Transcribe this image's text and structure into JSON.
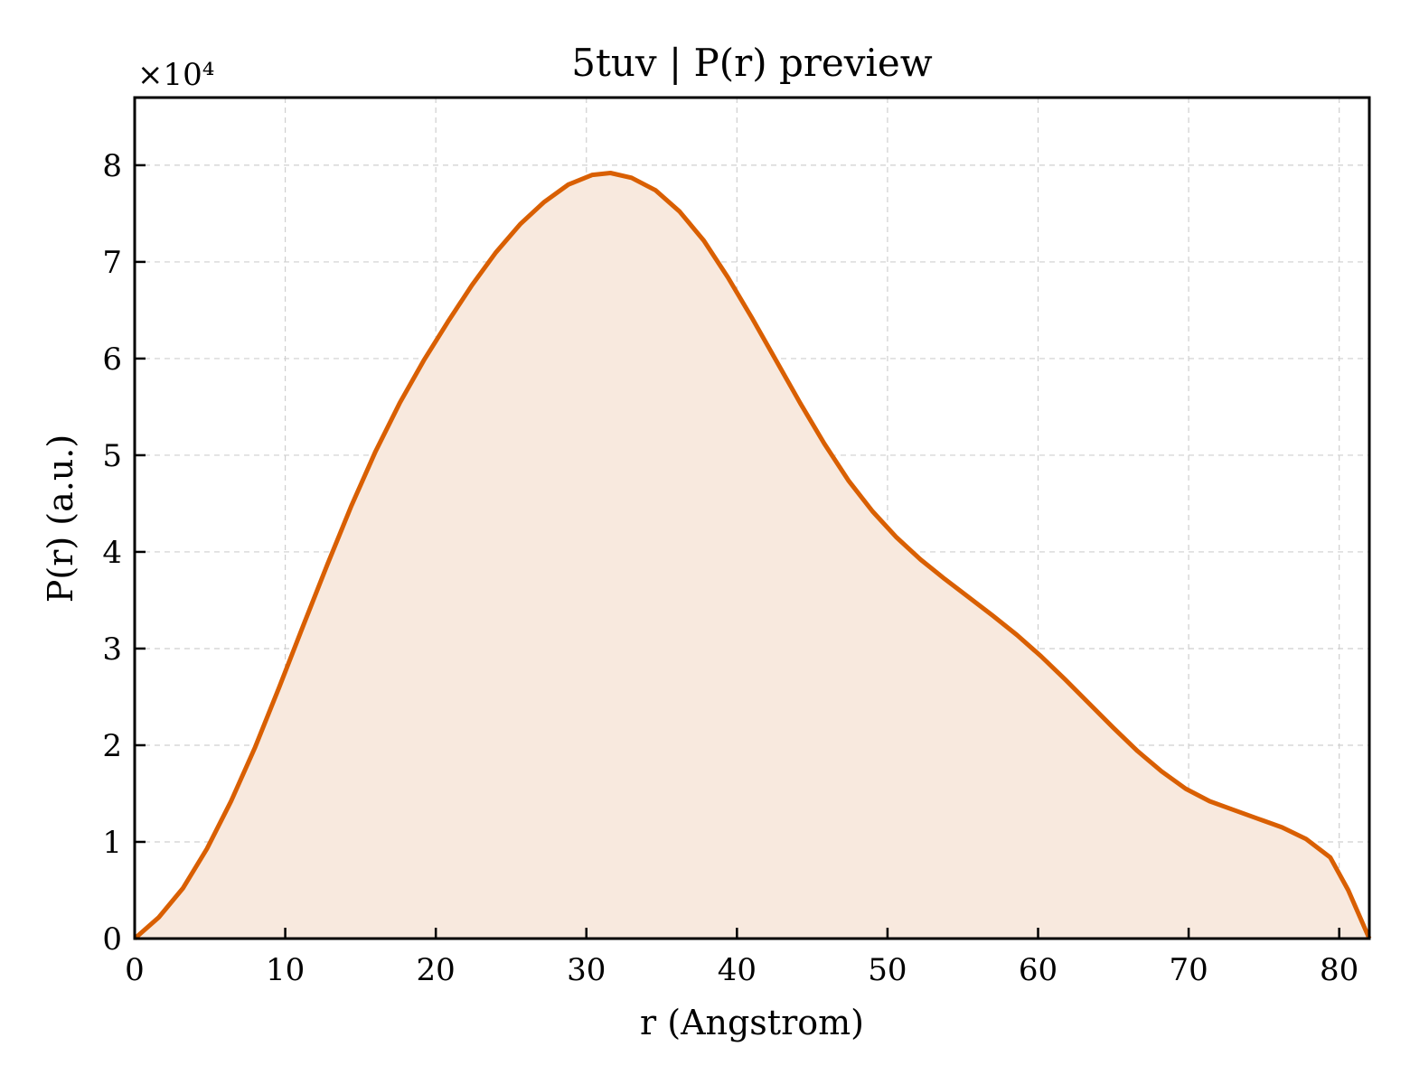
{
  "chart_data": {
    "type": "area",
    "title": "5tuv | P(r) preview",
    "xlabel": "r (Angstrom)",
    "ylabel": "P(r) (a.u.)",
    "y_multiplier_label": "×10⁴",
    "xlim": [
      0,
      82
    ],
    "ylim": [
      0,
      8.7
    ],
    "xticks": [
      0,
      10,
      20,
      30,
      40,
      50,
      60,
      70,
      80
    ],
    "yticks": [
      0,
      1,
      2,
      3,
      4,
      5,
      6,
      7,
      8
    ],
    "grid": true,
    "line_color": "#d95f02",
    "fill_color": "#f8e9de",
    "series": [
      {
        "x": [
          0,
          1.6,
          3.2,
          4.8,
          6.4,
          8,
          9.6,
          11.2,
          12.8,
          14.4,
          16,
          17.6,
          19.2,
          20.8,
          22.4,
          24,
          25.6,
          27.2,
          28.8,
          30.4,
          31.6,
          33,
          34.6,
          36.2,
          37.8,
          39.4,
          41,
          42.6,
          44.2,
          45.8,
          47.4,
          49,
          50.6,
          52.2,
          53.8,
          55.4,
          57,
          58.6,
          60.2,
          61.8,
          63.4,
          65,
          66.6,
          68.2,
          69.8,
          71.4,
          73,
          74.6,
          76.2,
          77.8,
          79.4,
          80.6,
          82
        ],
        "values": [
          0,
          0.22,
          0.52,
          0.93,
          1.42,
          1.98,
          2.6,
          3.24,
          3.87,
          4.48,
          5.04,
          5.54,
          5.98,
          6.38,
          6.76,
          7.1,
          7.39,
          7.62,
          7.8,
          7.9,
          7.92,
          7.87,
          7.74,
          7.52,
          7.22,
          6.84,
          6.42,
          5.98,
          5.54,
          5.12,
          4.74,
          4.42,
          4.15,
          3.92,
          3.72,
          3.53,
          3.34,
          3.14,
          2.92,
          2.68,
          2.43,
          2.18,
          1.94,
          1.73,
          1.55,
          1.42,
          1.33,
          1.24,
          1.15,
          1.03,
          0.84,
          0.5,
          0
        ]
      }
    ]
  }
}
